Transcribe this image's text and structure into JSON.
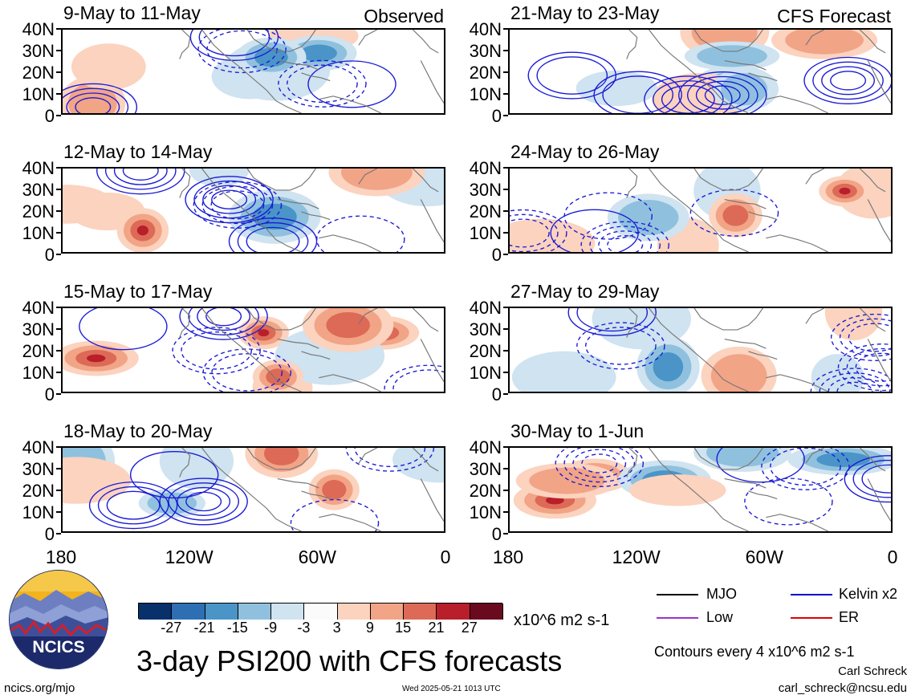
{
  "header": {
    "left_corner": "Observed",
    "right_corner": "CFS Forecast"
  },
  "panels": {
    "left": [
      "9-May to 11-May",
      "12-May to 14-May",
      "15-May to 17-May",
      "18-May to 20-May"
    ],
    "right": [
      "21-May to 23-May",
      "24-May to 26-May",
      "27-May to 29-May",
      "30-May to 1-Jun"
    ]
  },
  "axes": {
    "y_ticks": [
      "40N",
      "30N",
      "20N",
      "10N",
      "0"
    ],
    "x_ticks": [
      "180",
      "120W",
      "60W",
      "0"
    ]
  },
  "colorbar": {
    "ticks": [
      "-27",
      "-21",
      "-15",
      "-9",
      "-3",
      "3",
      "9",
      "15",
      "21",
      "27"
    ],
    "colors": [
      "#08306b",
      "#2e6fb4",
      "#4a94c8",
      "#8fc1de",
      "#cfe3f0",
      "#fbfbfb",
      "#fbd3bf",
      "#f2a486",
      "#dc6a57",
      "#b81f2a",
      "#6a0a1f"
    ],
    "units": "x10^6 m2 s-1"
  },
  "legend": {
    "items": [
      {
        "label": "MJO",
        "color": "#000000"
      },
      {
        "label": "Kelvin x2",
        "color": "#0000cc"
      },
      {
        "label": "Low",
        "color": "#9933cc"
      },
      {
        "label": "ER",
        "color": "#dd0000"
      }
    ],
    "contour_note": "Contours every 4 x10^6 m2 s-1"
  },
  "footer": {
    "main_title": "3-day PSI200 with CFS forecasts",
    "website": "ncics.org/mjo",
    "timestamp": "Wed 2025-05-21 1013 UTC",
    "author": "Carl Schreck",
    "email": "carl_schreck@ncsu.edu",
    "logo_text": "NCICS"
  }
}
